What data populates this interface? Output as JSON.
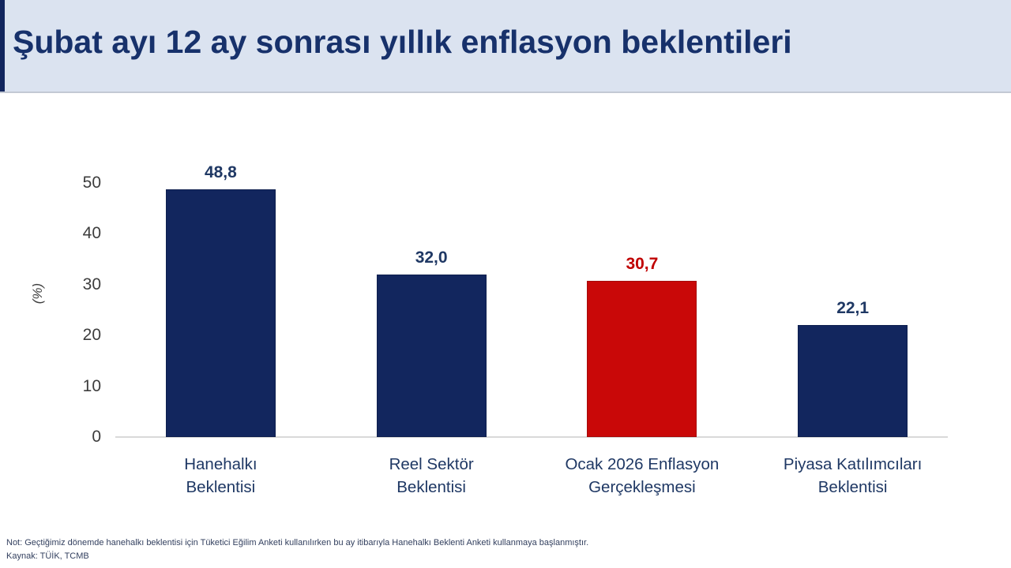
{
  "header": {
    "title": "Şubat ayı 12 ay sonrası yıllık enflasyon beklentileri"
  },
  "chart_data": {
    "type": "bar",
    "title": "Şubat ayı 12 ay sonrası yıllık enflasyon beklentileri",
    "categories": [
      [
        "Hanehalkı",
        "Beklentisi"
      ],
      [
        "Reel Sektör",
        "Beklentisi"
      ],
      [
        "Ocak 2026 Enflasyon",
        "Gerçekleşmesi"
      ],
      [
        "Piyasa Katılımcıları",
        "Beklentisi"
      ]
    ],
    "values": [
      48.8,
      32.0,
      30.7,
      22.1
    ],
    "value_labels": [
      "48,8",
      "32,0",
      "30,7",
      "22,1"
    ],
    "bar_colors": [
      "#12265e",
      "#12265e",
      "#c90808",
      "#12265e"
    ],
    "bar_border_colors": [
      "#0e1f4e",
      "#0e1f4e",
      "#a50b0b",
      "#0e1f4e"
    ],
    "value_label_colors": [
      "#1f3864",
      "#1f3864",
      "#c00000",
      "#1f3864"
    ],
    "xlabel": "",
    "ylabel": "(%)",
    "ylim": [
      0,
      50
    ],
    "yticks": [
      0,
      10,
      20,
      30,
      40,
      50
    ],
    "grid": false,
    "legend_position": "none"
  },
  "footer": {
    "note": "Not:  Geçtiğimiz dönemde  hanehalkı beklentisi için Tüketici Eğilim Anketi kullanılırken bu ay itibarıyla Hanehalkı Beklenti Anketi kullanmaya başlanmıştır.",
    "source": "Kaynak: TÜİK, TCMB"
  },
  "colors": {
    "banner_bg": "#dbe3f0",
    "title_text": "#17316b",
    "accent": "#12265e",
    "axis_line": "#d9d9d9",
    "tick_text": "#3d3d3d",
    "category_text": "#1f3864",
    "note_text": "#33405f"
  }
}
